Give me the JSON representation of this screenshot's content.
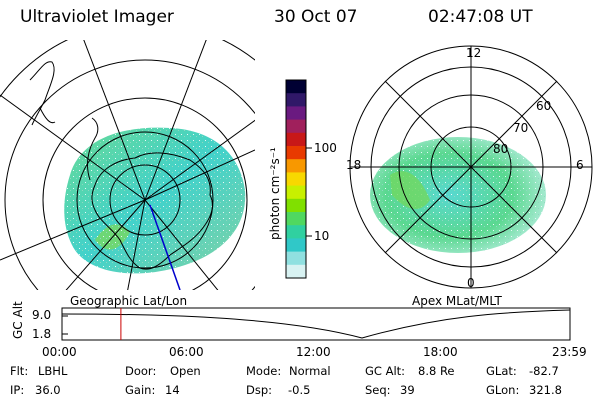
{
  "header": {
    "title": "Ultraviolet Imager",
    "date": "30 Oct 07",
    "time": "02:47:08 UT"
  },
  "left_panel": {
    "caption": "Geographic Lat/Lon"
  },
  "right_panel": {
    "caption": "Apex MLat/MLT",
    "mlt_labels": [
      "12",
      "18",
      "6",
      "0"
    ],
    "mlat_labels": [
      "60",
      "70",
      "80"
    ]
  },
  "colorbar": {
    "unit": "photon cm⁻²s⁻¹",
    "ticks": [
      "100",
      "10"
    ],
    "scale": "log",
    "colors": [
      "#000033",
      "#301868",
      "#6a1a80",
      "#a0205c",
      "#c81818",
      "#e83a00",
      "#f89800",
      "#f8d800",
      "#c8f000",
      "#80e000",
      "#50d860",
      "#30d0a0",
      "#30c8c8",
      "#90e0e0",
      "#d8f2f2"
    ]
  },
  "altitude_plot": {
    "ylabel": "GC Alt",
    "yticks": [
      "9.0",
      "1.8"
    ],
    "xticks": [
      "00:00",
      "06:00",
      "12:00",
      "18:00",
      "23:59"
    ],
    "marker_time_hours": 2.785,
    "marker_color": "#cc0000",
    "min_alt_time_hours": 14.0
  },
  "info": {
    "row1": {
      "flt_label": "Flt:",
      "flt_value": "LBHL",
      "door_label": "Door:",
      "door_value": "Open",
      "mode_label": "Mode:",
      "mode_value": "Normal",
      "gcalt_label": "GC Alt:",
      "gcalt_value": "8.8 Re",
      "glat_label": "GLat:",
      "glat_value": "-82.7"
    },
    "row2": {
      "ip_label": "IP:",
      "ip_value": "36.0",
      "gain_label": "Gain:",
      "gain_value": "14",
      "dsp_label": "Dsp:",
      "dsp_value": "-0.5",
      "seq_label": "Seq:",
      "seq_value": "39",
      "glon_label": "GLon:",
      "glon_value": "321.8"
    }
  }
}
